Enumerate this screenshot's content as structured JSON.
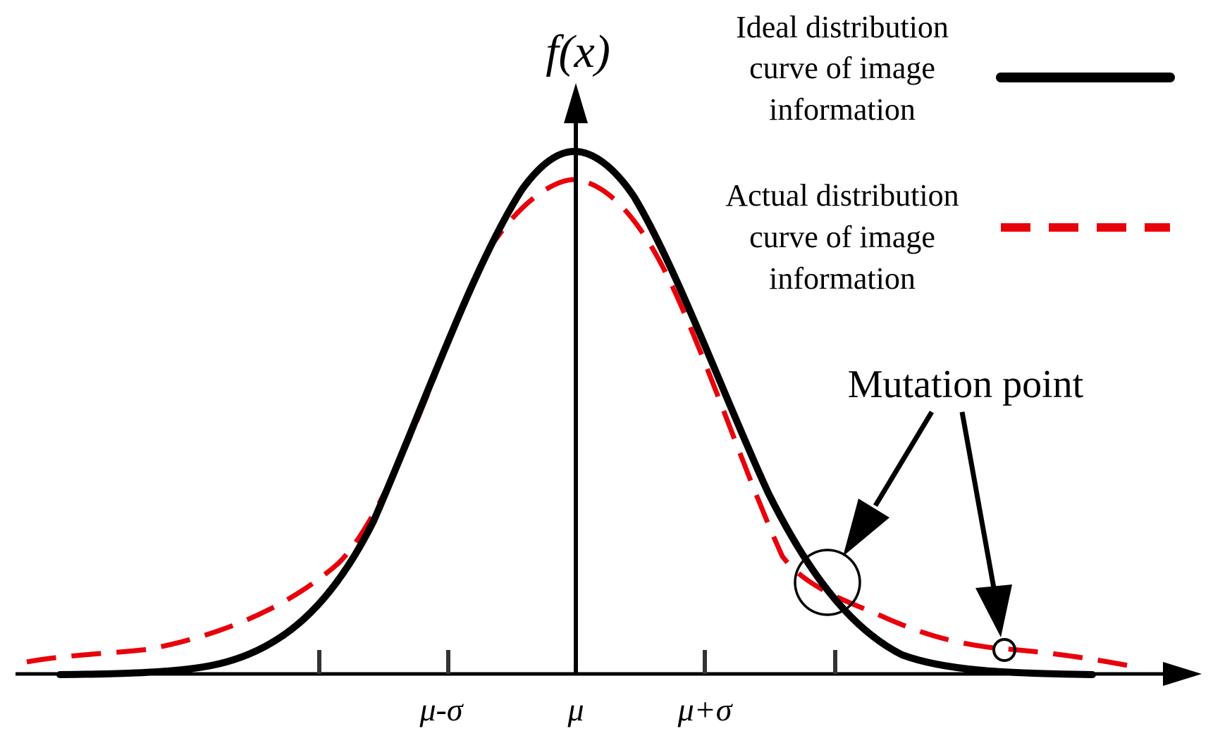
{
  "axes": {
    "y_label": "f(x)",
    "x_tick_labels": [
      "μ-σ",
      "μ",
      "μ+σ"
    ]
  },
  "legend": {
    "items": [
      {
        "lines": [
          "Ideal distribution",
          "curve of image",
          "information"
        ],
        "style": "solid",
        "color": "#000000"
      },
      {
        "lines": [
          "Actual distribution",
          "curve of image",
          "information"
        ],
        "style": "dashed",
        "color": "#e8000b"
      }
    ]
  },
  "annotation": {
    "label": "Mutation point"
  },
  "colors": {
    "ideal": "#000000",
    "actual": "#e8000b",
    "axis": "#000000"
  }
}
